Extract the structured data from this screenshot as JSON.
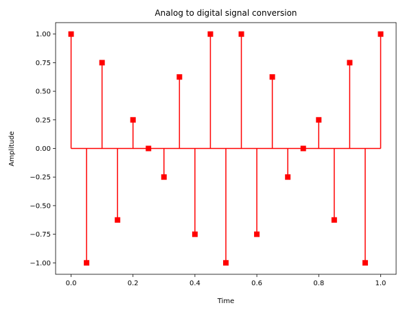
{
  "chart_data": {
    "type": "stem",
    "title": "Analog to digital signal conversion",
    "xlabel": "Time",
    "ylabel": "Amplitude",
    "xlim": [
      -0.05,
      1.05
    ],
    "ylim": [
      -1.1,
      1.1
    ],
    "xticks": [
      0.0,
      0.2,
      0.4,
      0.6,
      0.8,
      1.0
    ],
    "xtick_labels": [
      "0.0",
      "0.2",
      "0.4",
      "0.6",
      "0.8",
      "1.0"
    ],
    "yticks": [
      -1.0,
      -0.75,
      -0.5,
      -0.25,
      0.0,
      0.25,
      0.5,
      0.75,
      1.0
    ],
    "ytick_labels": [
      "−1.00",
      "−0.75",
      "−0.50",
      "−0.25",
      "0.00",
      "0.25",
      "0.50",
      "0.75",
      "1.00"
    ],
    "grid": false,
    "marker": "square",
    "color": "#ff0000",
    "baseline": 0,
    "x": [
      0.0,
      0.05,
      0.1,
      0.15,
      0.2,
      0.25,
      0.3,
      0.35,
      0.4,
      0.45,
      0.5,
      0.55,
      0.6,
      0.65,
      0.7,
      0.75,
      0.8,
      0.85,
      0.9,
      0.95,
      1.0
    ],
    "y": [
      1.0,
      -1.0,
      0.75,
      -0.625,
      0.25,
      0.0,
      -0.25,
      0.625,
      -0.75,
      1.0,
      -1.0,
      1.0,
      -0.75,
      0.625,
      -0.25,
      0.0,
      0.25,
      -0.625,
      0.75,
      -1.0,
      1.0
    ]
  }
}
